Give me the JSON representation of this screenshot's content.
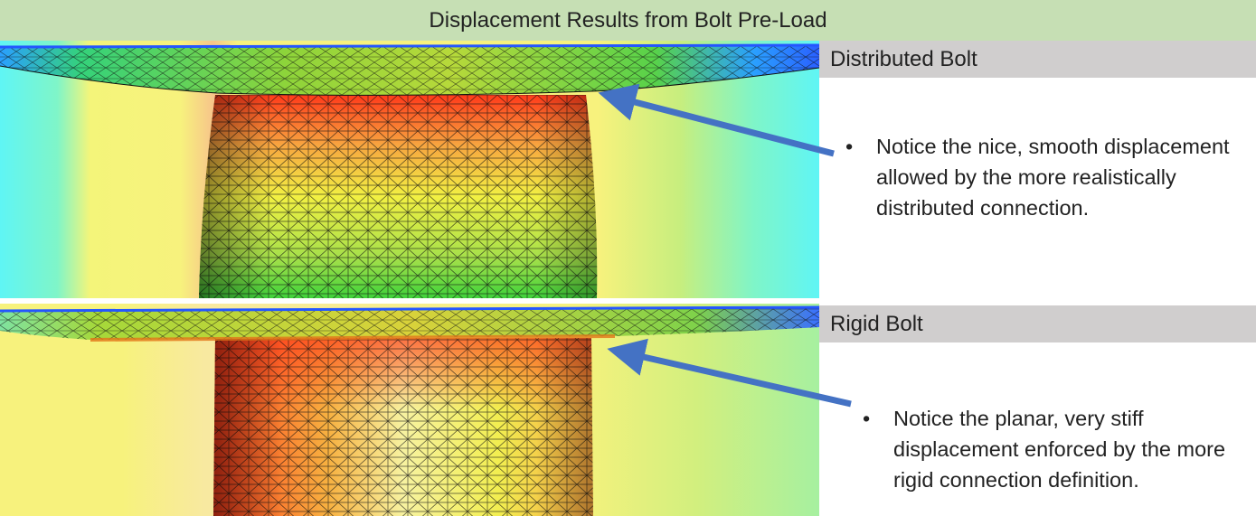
{
  "title": "Displacement Results from Bolt Pre-Load",
  "sections": [
    {
      "label": "Distributed Bolt",
      "note": "Notice the nice, smooth displacement allowed by the more realistically distributed connection."
    },
    {
      "label": "Rigid Bolt",
      "note": "Notice the planar, very stiff displacement enforced by the more rigid connection definition."
    }
  ],
  "bullet": "•",
  "colors": {
    "title_bg": "#c6dfb4",
    "label_bg": "#d0cece",
    "arrow": "#4472c4",
    "fringe_cyan": "#5ff5f5",
    "fringe_yellow": "#f6f57a",
    "fringe_green": "#6fd24a",
    "fringe_red": "#ff3b1a"
  }
}
